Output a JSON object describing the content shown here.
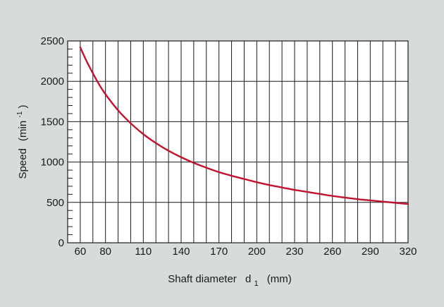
{
  "chart_data": {
    "type": "line",
    "title": "",
    "xlabel": "Shaft diameter",
    "xlabel_symbol": "d",
    "xlabel_subscript": "1",
    "xlabel_unit": "(mm)",
    "ylabel": "Speed",
    "ylabel_unit_open": "(min",
    "ylabel_unit_sup": "-1",
    "ylabel_unit_close": ")",
    "xlim": [
      50,
      320
    ],
    "ylim": [
      0,
      2500
    ],
    "x_tick_values": [
      60,
      80,
      110,
      140,
      170,
      200,
      230,
      260,
      290,
      320
    ],
    "x_tick_labels": [
      "60",
      "80",
      "110",
      "140",
      "170",
      "200",
      "230",
      "260",
      "290",
      "320"
    ],
    "y_tick_values": [
      0,
      500,
      1000,
      1500,
      2000,
      2500
    ],
    "y_tick_labels": [
      "0",
      "500",
      "1000",
      "1500",
      "2000",
      "2500"
    ],
    "x_grid_step": 10,
    "y_grid_step": 500,
    "y_minor_step": 100,
    "grid": true,
    "legend": "none",
    "series": [
      {
        "color": "#c1122f",
        "x": [
          60,
          65,
          70,
          75,
          80,
          90,
          100,
          110,
          120,
          130,
          140,
          150,
          160,
          170,
          180,
          190,
          200,
          210,
          220,
          230,
          240,
          250,
          260,
          270,
          280,
          290,
          300,
          310,
          320
        ],
        "y": [
          2420,
          2250,
          2100,
          1960,
          1840,
          1640,
          1480,
          1345,
          1235,
          1140,
          1060,
          990,
          930,
          875,
          830,
          790,
          750,
          715,
          685,
          655,
          630,
          605,
          580,
          560,
          540,
          525,
          510,
          495,
          480
        ]
      }
    ]
  }
}
